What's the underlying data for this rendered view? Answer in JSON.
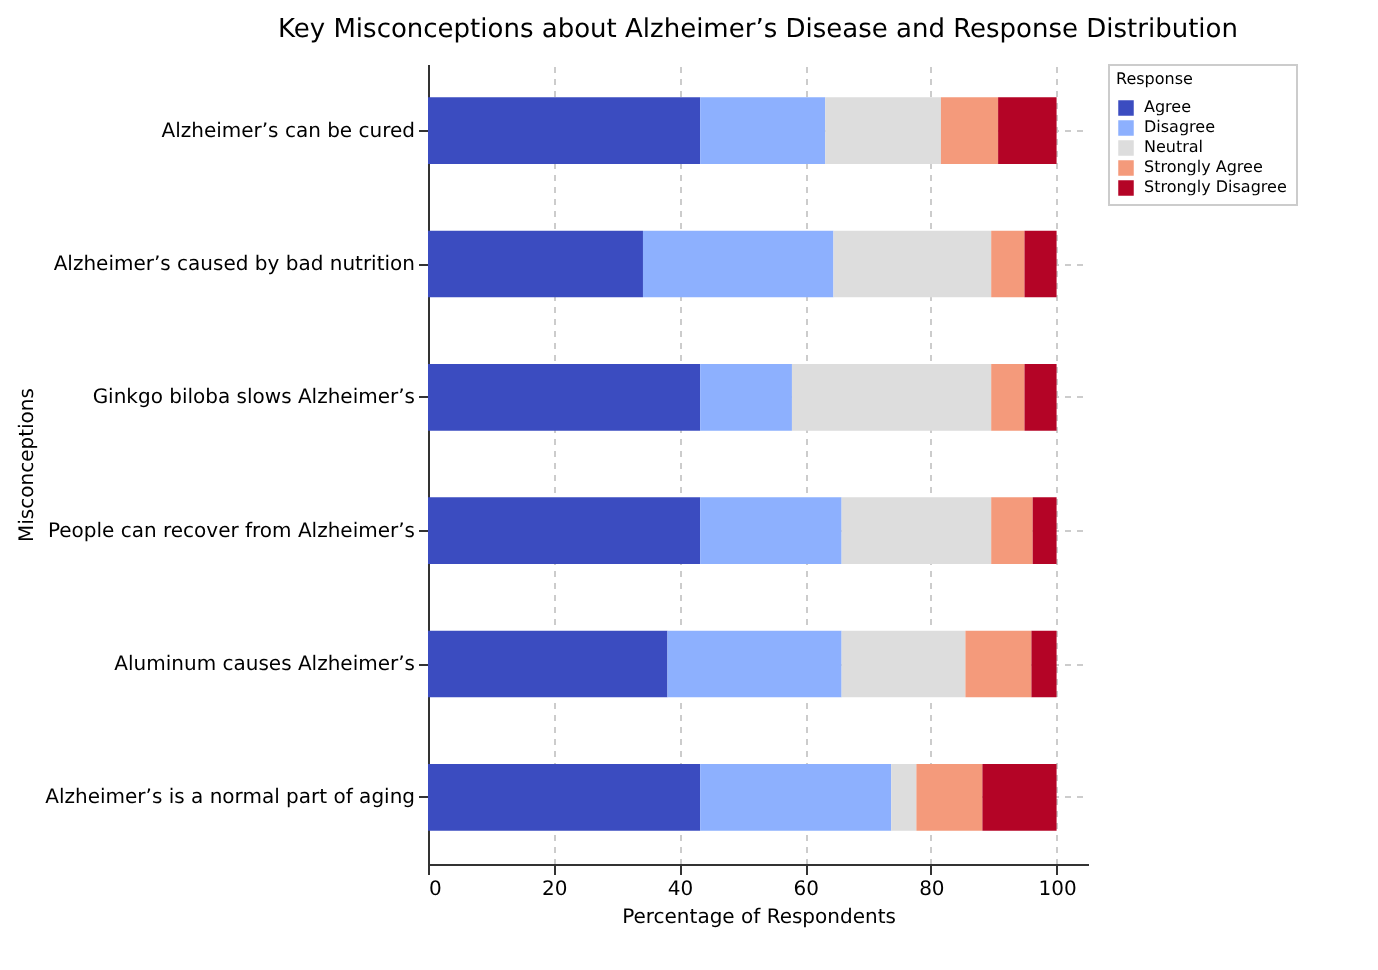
{
  "chart_data": {
    "type": "bar",
    "orientation": "horizontal",
    "stacked": true,
    "title": "Key Misconceptions about Alzheimer’s Disease and Response Distribution",
    "xlabel": "Percentage of Respondents",
    "ylabel": "Misconceptions",
    "legend_title": "Response",
    "legend": "top right",
    "grid": true,
    "categories": [
      "Alzheimer’s can be cured",
      "Alzheimer’s caused by bad nutrition",
      "Ginkgo biloba slows Alzheimer’s",
      "People can recover from Alzheimer’s",
      "Aluminum causes Alzheimer’s",
      "Alzheimer’s is a normal part of aging"
    ],
    "xlim": [
      0,
      105
    ],
    "xticks": [
      0,
      20,
      40,
      60,
      80,
      100
    ],
    "series": [
      {
        "name": "Agree",
        "color": "#3b4cc0",
        "values": [
          43.3,
          34.2,
          43.3,
          43.3,
          38.1,
          43.3
        ]
      },
      {
        "name": "Disagree",
        "color": "#8db0fe",
        "values": [
          19.9,
          30.3,
          14.6,
          22.5,
          27.7,
          30.4
        ]
      },
      {
        "name": "Neutral",
        "color": "#dddddd",
        "values": [
          18.4,
          25.1,
          31.7,
          23.8,
          19.7,
          4.0
        ]
      },
      {
        "name": "Strongly Agree",
        "color": "#f49a7b",
        "values": [
          9.1,
          5.3,
          5.3,
          6.6,
          10.5,
          10.5
        ]
      },
      {
        "name": "Strongly Disagree",
        "color": "#b40426",
        "values": [
          9.3,
          5.1,
          5.1,
          3.8,
          4.0,
          11.8
        ]
      }
    ]
  }
}
